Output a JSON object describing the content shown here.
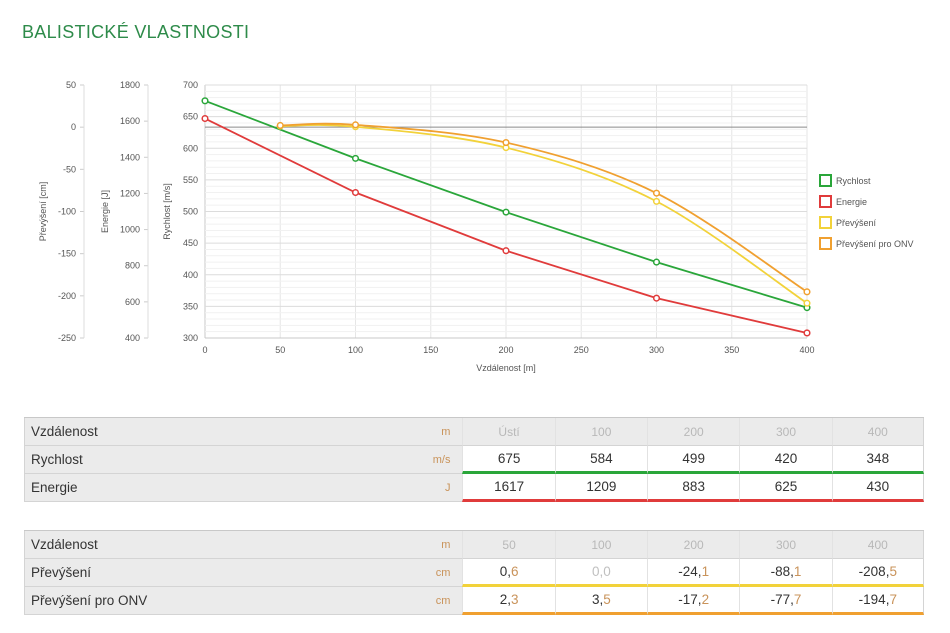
{
  "page": {
    "title": "BALISTICKÉ VLASTNOSTI"
  },
  "colors": {
    "accent": "#2e8b4a",
    "rychlost": "#2aa63a",
    "energie": "#e03b3b",
    "prevyseni": "#f2d23a",
    "prevyseni_onv": "#f0a030"
  },
  "chart_data": {
    "type": "line",
    "xlabel": "Vzdálenost [m]",
    "x_ticks": [
      "0",
      "50",
      "100",
      "150",
      "200",
      "250",
      "300",
      "350",
      "400"
    ],
    "xlim": [
      0,
      400
    ],
    "grid": true,
    "legend_position": "right",
    "axes": [
      {
        "key": "prevyseni",
        "label": "Převýšení [cm]",
        "ticks": [
          "50",
          "0",
          "-50",
          "-100",
          "-150",
          "-200",
          "-250"
        ],
        "range": [
          -250,
          50
        ]
      },
      {
        "key": "energie",
        "label": "Energie [J]",
        "ticks": [
          "1800",
          "1600",
          "1400",
          "1200",
          "1000",
          "800",
          "600",
          "400"
        ],
        "range": [
          400,
          1800
        ]
      },
      {
        "key": "rychlost",
        "label": "Rychlost [m/s]",
        "ticks": [
          "700",
          "650",
          "600",
          "550",
          "500",
          "450",
          "400",
          "350",
          "300"
        ],
        "range": [
          300,
          700
        ]
      }
    ],
    "series": [
      {
        "name": "Rychlost",
        "color": "#2aa63a",
        "axis": "rychlost",
        "x": [
          0,
          100,
          200,
          300,
          400
        ],
        "y": [
          675,
          584,
          499,
          420,
          348
        ],
        "smooth": false
      },
      {
        "name": "Energie",
        "color": "#e03b3b",
        "axis": "rychlost",
        "x": [
          0,
          100,
          200,
          300,
          400
        ],
        "y": [
          647,
          530,
          438,
          363,
          308
        ],
        "smooth": false
      },
      {
        "name": "Převýšení",
        "color": "#f2d23a",
        "axis": "rychlost",
        "x": [
          50,
          100,
          200,
          300,
          400
        ],
        "y": [
          635,
          634,
          601,
          516,
          355
        ],
        "smooth": true
      },
      {
        "name": "Převýšení pro ONV",
        "color": "#f0a030",
        "axis": "rychlost",
        "x": [
          50,
          100,
          200,
          300,
          400
        ],
        "y": [
          636,
          637,
          609,
          529,
          373
        ],
        "smooth": true
      }
    ]
  },
  "table1": {
    "rows": [
      {
        "label": "Vzdálenost",
        "unit": "m",
        "values": [
          "Ústí",
          "100",
          "200",
          "300",
          "400"
        ]
      },
      {
        "label": "Rychlost",
        "unit": "m/s",
        "values": [
          "675",
          "584",
          "499",
          "420",
          "348"
        ]
      },
      {
        "label": "Energie",
        "unit": "J",
        "values": [
          "1617",
          "1209",
          "883",
          "625",
          "430"
        ]
      }
    ]
  },
  "table2": {
    "rows": [
      {
        "label": "Vzdálenost",
        "unit": "m",
        "values": [
          "50",
          "100",
          "200",
          "300",
          "400"
        ]
      },
      {
        "label": "Převýšení",
        "unit": "cm",
        "values": [
          {
            "int": "0,",
            "dec": "6"
          },
          {
            "int": "0,",
            "dec": "0"
          },
          {
            "int": "-24,",
            "dec": "1"
          },
          {
            "int": "-88,",
            "dec": "1"
          },
          {
            "int": "-208,",
            "dec": "5"
          }
        ]
      },
      {
        "label": "Převýšení pro ONV",
        "unit": "cm",
        "values": [
          {
            "int": "2,",
            "dec": "3"
          },
          {
            "int": "3,",
            "dec": "5"
          },
          {
            "int": "-17,",
            "dec": "2"
          },
          {
            "int": "-77,",
            "dec": "7"
          },
          {
            "int": "-194,",
            "dec": "7"
          }
        ]
      }
    ]
  }
}
